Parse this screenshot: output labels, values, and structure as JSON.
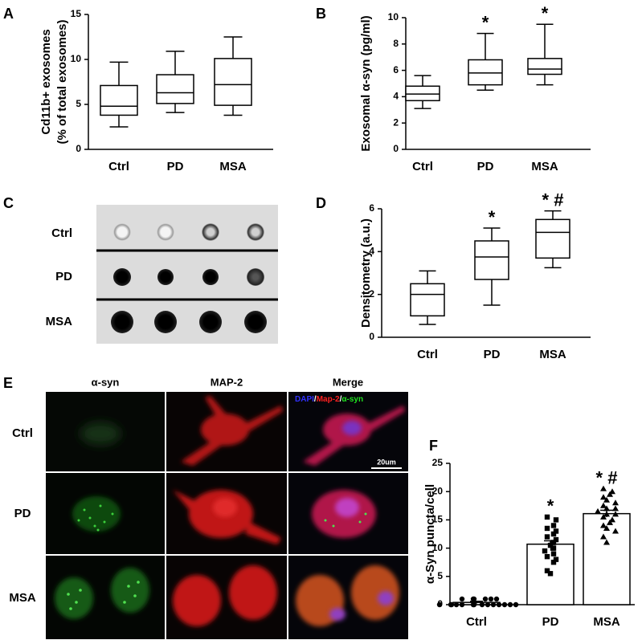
{
  "chart_data": [
    {
      "type": "box",
      "label": "A",
      "ylabel": [
        "Cd11b+ exosomes",
        "(% of total exosomes)"
      ],
      "categories": [
        "Ctrl",
        "PD",
        "MSA"
      ],
      "whisker_low": [
        2.5,
        4.1,
        3.8
      ],
      "q1": [
        3.8,
        5.1,
        4.9
      ],
      "median": [
        4.8,
        6.3,
        7.2
      ],
      "q3": [
        7.1,
        8.3,
        10.1
      ],
      "whisker_high": [
        9.7,
        10.9,
        12.5
      ],
      "color": "#000000",
      "ylim": [
        0,
        15
      ],
      "yticks": [
        0,
        5,
        10,
        15
      ]
    },
    {
      "type": "box",
      "label": "B",
      "ylabel": [
        "Exosomal α-syn (pg/ml)"
      ],
      "categories": [
        "Ctrl",
        "PD",
        "MSA"
      ],
      "whisker_low": [
        3.1,
        4.5,
        4.9
      ],
      "q1": [
        3.7,
        4.9,
        5.7
      ],
      "median": [
        4.2,
        5.8,
        6.1
      ],
      "q3": [
        4.8,
        6.8,
        6.9
      ],
      "whisker_high": [
        5.6,
        8.8,
        9.5
      ],
      "color": "#000000",
      "ylim": [
        0,
        10
      ],
      "yticks": [
        0,
        2,
        4,
        6,
        8,
        10
      ],
      "annotations": [
        {
          "category": "PD",
          "text": "*"
        },
        {
          "category": "MSA",
          "text": "*"
        }
      ]
    },
    {
      "type": "box",
      "label": "D",
      "ylabel": [
        "Densitometry (a.u.)"
      ],
      "categories": [
        "Ctrl",
        "PD",
        "MSA"
      ],
      "whisker_low": [
        0.6,
        1.5,
        3.25
      ],
      "q1": [
        1.0,
        2.7,
        3.7
      ],
      "median": [
        2.0,
        3.75,
        4.9
      ],
      "q3": [
        2.5,
        4.5,
        5.5
      ],
      "whisker_high": [
        3.1,
        5.1,
        5.9
      ],
      "color": "#000000",
      "ylim": [
        0,
        6
      ],
      "yticks": [
        0,
        2,
        4,
        6
      ],
      "annotations": [
        {
          "category": "PD",
          "text": "*"
        },
        {
          "category": "MSA",
          "text": "* #"
        }
      ]
    },
    {
      "type": "bar",
      "label": "F",
      "ylabel": [
        "α-Syn puncta/cell"
      ],
      "categories": [
        "Ctrl",
        "PD",
        "MSA"
      ],
      "values": [
        0.4,
        10.7,
        16.1
      ],
      "errors": [
        0.2,
        0.6,
        0.6
      ],
      "points": [
        [
          0,
          0,
          0,
          1,
          0,
          1,
          0,
          0,
          1,
          0,
          0,
          1,
          0,
          0,
          0,
          1,
          0,
          1,
          0,
          0
        ],
        [
          15.5,
          15,
          14,
          13.5,
          13,
          12.5,
          12,
          11.5,
          11,
          11,
          10.5,
          10,
          10,
          9.5,
          9,
          8.5,
          8,
          7.5,
          6,
          5.5
        ],
        [
          20.5,
          20,
          19.5,
          19,
          18.5,
          18,
          17.5,
          17,
          17,
          16.5,
          16,
          16,
          15.5,
          15,
          14.5,
          14,
          13.5,
          13,
          12,
          11
        ]
      ],
      "markers": [
        "circle",
        "square",
        "triangle"
      ],
      "color": "#000000",
      "ylim": [
        0,
        25
      ],
      "yticks": [
        0,
        5,
        10,
        15,
        20,
        25
      ],
      "annotations": [
        {
          "category": "PD",
          "text": "*"
        },
        {
          "category": "MSA",
          "text": "* #"
        }
      ]
    }
  ],
  "blot": {
    "label": "C",
    "rows": [
      "Ctrl",
      "PD",
      "MSA"
    ]
  },
  "micrographs": {
    "label": "E",
    "columns": [
      "α-syn",
      "MAP-2",
      "Merge"
    ],
    "rows": [
      "Ctrl",
      "PD",
      "MSA"
    ],
    "legend": [
      {
        "text": "DAPI",
        "color": "#3030ff"
      },
      {
        "text": "/",
        "color": "#ffffff"
      },
      {
        "text": "Map-2",
        "color": "#ff2020"
      },
      {
        "text": "/",
        "color": "#ffffff"
      },
      {
        "text": "α-syn",
        "color": "#20e020"
      }
    ],
    "scale_bar": "20um"
  }
}
